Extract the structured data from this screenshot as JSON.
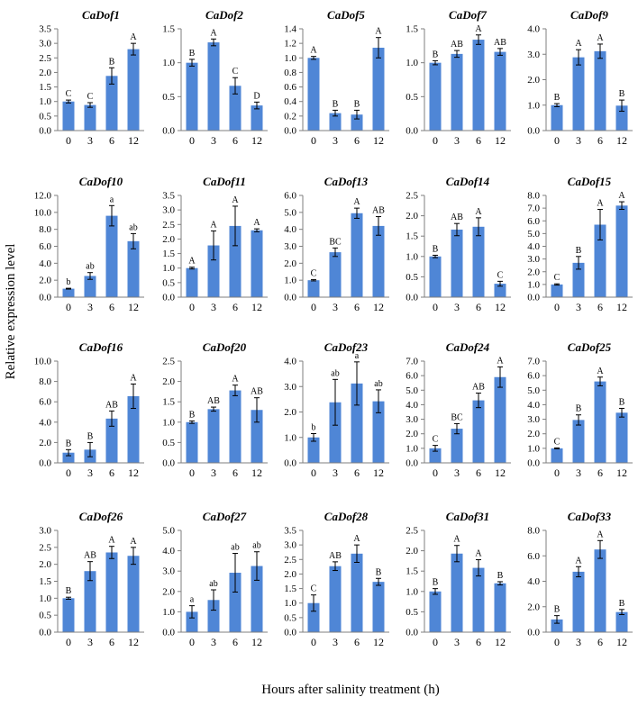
{
  "figure": {
    "ylabel": "Relative expression level",
    "xlabel": "Hours after salinity treatment (h)",
    "bar_color": "#4f86d6",
    "axis_color": "#7f7f7f"
  },
  "chart_data": [
    {
      "type": "bar",
      "title": "CaDof1",
      "categories": [
        "0",
        "3",
        "6",
        "12"
      ],
      "values": [
        1.0,
        0.88,
        1.88,
        2.8
      ],
      "errors": [
        0.05,
        0.08,
        0.28,
        0.2
      ],
      "letters": [
        "C",
        "C",
        "B",
        "A"
      ],
      "yticks": [
        "0.0",
        "0.5",
        "1.0",
        "1.5",
        "2.0",
        "2.5",
        "3.0",
        "3.5"
      ],
      "ylim": [
        0,
        3.5
      ]
    },
    {
      "type": "bar",
      "title": "CaDof2",
      "categories": [
        "0",
        "3",
        "6",
        "12"
      ],
      "values": [
        1.0,
        1.3,
        0.66,
        0.37
      ],
      "errors": [
        0.05,
        0.05,
        0.12,
        0.05
      ],
      "letters": [
        "B",
        "A",
        "C",
        "D"
      ],
      "yticks": [
        "0.0",
        "0.5",
        "1.0",
        "1.5"
      ],
      "ylim": [
        0,
        1.5
      ]
    },
    {
      "type": "bar",
      "title": "CaDof5",
      "categories": [
        "0",
        "3",
        "6",
        "12"
      ],
      "values": [
        1.0,
        0.24,
        0.22,
        1.14
      ],
      "errors": [
        0.02,
        0.04,
        0.06,
        0.14
      ],
      "letters": [
        "A",
        "B",
        "B",
        "A"
      ],
      "yticks": [
        "0.0",
        "0.2",
        "0.4",
        "0.6",
        "0.8",
        "1.0",
        "1.2",
        "1.4"
      ],
      "ylim": [
        0,
        1.4
      ]
    },
    {
      "type": "bar",
      "title": "CaDof7",
      "categories": [
        "0",
        "3",
        "6",
        "12"
      ],
      "values": [
        1.0,
        1.13,
        1.34,
        1.16
      ],
      "errors": [
        0.03,
        0.05,
        0.07,
        0.05
      ],
      "letters": [
        "B",
        "AB",
        "A",
        "AB"
      ],
      "yticks": [
        "0.0",
        "0.5",
        "1.0",
        "1.5"
      ],
      "ylim": [
        0,
        1.5
      ]
    },
    {
      "type": "bar",
      "title": "CaDof9",
      "categories": [
        "0",
        "3",
        "6",
        "12"
      ],
      "values": [
        1.0,
        2.88,
        3.12,
        0.98
      ],
      "errors": [
        0.06,
        0.3,
        0.28,
        0.22
      ],
      "letters": [
        "B",
        "A",
        "A",
        "B"
      ],
      "yticks": [
        "0.0",
        "1.0",
        "2.0",
        "3.0",
        "4.0"
      ],
      "ylim": [
        0,
        4
      ]
    },
    {
      "type": "bar",
      "title": "CaDof10",
      "categories": [
        "0",
        "3",
        "6",
        "12"
      ],
      "values": [
        1.0,
        2.5,
        9.6,
        6.6
      ],
      "errors": [
        0.05,
        0.4,
        1.2,
        0.9
      ],
      "letters": [
        "b",
        "ab",
        "a",
        "ab"
      ],
      "yticks": [
        "0.0",
        "2.0",
        "4.0",
        "6.0",
        "8.0",
        "10.0",
        "12.0"
      ],
      "ylim": [
        0,
        12
      ]
    },
    {
      "type": "bar",
      "title": "CaDof11",
      "categories": [
        "0",
        "3",
        "6",
        "12"
      ],
      "values": [
        1.0,
        1.78,
        2.45,
        2.3
      ],
      "errors": [
        0.03,
        0.5,
        0.68,
        0.05
      ],
      "letters": [
        "A",
        "A",
        "A",
        "A"
      ],
      "yticks": [
        "0.0",
        "0.5",
        "1.0",
        "1.5",
        "2.0",
        "2.5",
        "3.0",
        "3.5"
      ],
      "ylim": [
        0,
        3.5
      ]
    },
    {
      "type": "bar",
      "title": "CaDof13",
      "categories": [
        "0",
        "3",
        "6",
        "12"
      ],
      "values": [
        1.0,
        2.65,
        4.95,
        4.2
      ],
      "errors": [
        0.04,
        0.25,
        0.3,
        0.55
      ],
      "letters": [
        "C",
        "BC",
        "A",
        "AB"
      ],
      "yticks": [
        "0.0",
        "1.0",
        "2.0",
        "3.0",
        "4.0",
        "5.0",
        "6.0"
      ],
      "ylim": [
        0,
        6
      ]
    },
    {
      "type": "bar",
      "title": "CaDof14",
      "categories": [
        "0",
        "3",
        "6",
        "12"
      ],
      "values": [
        1.0,
        1.66,
        1.73,
        0.33
      ],
      "errors": [
        0.03,
        0.15,
        0.22,
        0.06
      ],
      "letters": [
        "B",
        "AB",
        "A",
        "C"
      ],
      "yticks": [
        "0.0",
        "0.5",
        "1.0",
        "1.5",
        "2.0",
        "2.5"
      ],
      "ylim": [
        0,
        2.5
      ]
    },
    {
      "type": "bar",
      "title": "CaDof15",
      "categories": [
        "0",
        "3",
        "6",
        "12"
      ],
      "values": [
        1.0,
        2.7,
        5.7,
        7.2
      ],
      "errors": [
        0.05,
        0.5,
        1.2,
        0.3
      ],
      "letters": [
        "C",
        "B",
        "A",
        "A"
      ],
      "yticks": [
        "0.0",
        "1.0",
        "2.0",
        "3.0",
        "4.0",
        "5.0",
        "6.0",
        "7.0",
        "8.0"
      ],
      "ylim": [
        0,
        8
      ]
    },
    {
      "type": "bar",
      "title": "CaDof16",
      "categories": [
        "0",
        "3",
        "6",
        "12"
      ],
      "values": [
        1.0,
        1.3,
        4.35,
        6.55
      ],
      "errors": [
        0.3,
        0.7,
        0.75,
        1.2
      ],
      "letters": [
        "B",
        "B",
        "AB",
        "A"
      ],
      "yticks": [
        "0.0",
        "2.0",
        "4.0",
        "6.0",
        "8.0",
        "10.0"
      ],
      "ylim": [
        0,
        10
      ]
    },
    {
      "type": "bar",
      "title": "CaDof20",
      "categories": [
        "0",
        "3",
        "6",
        "12"
      ],
      "values": [
        1.0,
        1.32,
        1.78,
        1.3
      ],
      "errors": [
        0.03,
        0.05,
        0.13,
        0.3
      ],
      "letters": [
        "B",
        "AB",
        "A",
        "AB"
      ],
      "yticks": [
        "0.0",
        "0.5",
        "1.0",
        "1.5",
        "2.0",
        "2.5"
      ],
      "ylim": [
        0,
        2.5
      ]
    },
    {
      "type": "bar",
      "title": "CaDof23",
      "categories": [
        "0",
        "3",
        "6",
        "12"
      ],
      "values": [
        1.0,
        2.38,
        3.12,
        2.42
      ],
      "errors": [
        0.15,
        0.9,
        0.85,
        0.45
      ],
      "letters": [
        "b",
        "ab",
        "a",
        "ab"
      ],
      "yticks": [
        "0.0",
        "1.0",
        "2.0",
        "3.0",
        "4.0"
      ],
      "ylim": [
        0,
        4
      ]
    },
    {
      "type": "bar",
      "title": "CaDof24",
      "categories": [
        "0",
        "3",
        "6",
        "12"
      ],
      "values": [
        1.0,
        2.35,
        4.3,
        5.9
      ],
      "errors": [
        0.2,
        0.35,
        0.5,
        0.7
      ],
      "letters": [
        "C",
        "BC",
        "AB",
        "A"
      ],
      "yticks": [
        "0.0",
        "1.0",
        "2.0",
        "3.0",
        "4.0",
        "5.0",
        "6.0",
        "7.0"
      ],
      "ylim": [
        0,
        7
      ]
    },
    {
      "type": "bar",
      "title": "CaDof25",
      "categories": [
        "0",
        "3",
        "6",
        "12"
      ],
      "values": [
        1.0,
        2.95,
        5.6,
        3.45
      ],
      "errors": [
        0.03,
        0.35,
        0.3,
        0.3
      ],
      "letters": [
        "C",
        "B",
        "A",
        "B"
      ],
      "yticks": [
        "0.0",
        "1.0",
        "2.0",
        "3.0",
        "4.0",
        "5.0",
        "6.0",
        "7.0"
      ],
      "ylim": [
        0,
        7
      ]
    },
    {
      "type": "bar",
      "title": "CaDof26",
      "categories": [
        "0",
        "3",
        "6",
        "12"
      ],
      "values": [
        1.0,
        1.8,
        2.35,
        2.25
      ],
      "errors": [
        0.03,
        0.28,
        0.18,
        0.25
      ],
      "letters": [
        "B",
        "AB",
        "A",
        "A"
      ],
      "yticks": [
        "0.0",
        "0.5",
        "1.0",
        "1.5",
        "2.0",
        "2.5",
        "3.0"
      ],
      "ylim": [
        0,
        3
      ]
    },
    {
      "type": "bar",
      "title": "CaDof27",
      "categories": [
        "0",
        "3",
        "6",
        "12"
      ],
      "values": [
        1.0,
        1.58,
        2.92,
        3.25
      ],
      "errors": [
        0.3,
        0.5,
        0.95,
        0.7
      ],
      "letters": [
        "a",
        "ab",
        "ab",
        "ab"
      ],
      "yticks": [
        "0.0",
        "1.0",
        "2.0",
        "3.0",
        "4.0",
        "5.0"
      ],
      "ylim": [
        0,
        5
      ]
    },
    {
      "type": "bar",
      "title": "CaDof28",
      "categories": [
        "0",
        "3",
        "6",
        "12"
      ],
      "values": [
        1.0,
        2.27,
        2.7,
        1.73
      ],
      "errors": [
        0.28,
        0.15,
        0.3,
        0.12
      ],
      "letters": [
        "C",
        "AB",
        "A",
        "B"
      ],
      "yticks": [
        "0.0",
        "0.5",
        "1.0",
        "1.5",
        "2.0",
        "2.5",
        "3.0",
        "3.5"
      ],
      "ylim": [
        0,
        3.5
      ]
    },
    {
      "type": "bar",
      "title": "CaDof31",
      "categories": [
        "0",
        "3",
        "6",
        "12"
      ],
      "values": [
        1.0,
        1.93,
        1.58,
        1.2
      ],
      "errors": [
        0.07,
        0.2,
        0.2,
        0.04
      ],
      "letters": [
        "B",
        "A",
        "A",
        "B"
      ],
      "yticks": [
        "0.0",
        "0.5",
        "1.0",
        "1.5",
        "2.0",
        "2.5"
      ],
      "ylim": [
        0,
        2.5
      ]
    },
    {
      "type": "bar",
      "title": "CaDof33",
      "categories": [
        "0",
        "3",
        "6",
        "12"
      ],
      "values": [
        1.0,
        4.75,
        6.5,
        1.58
      ],
      "errors": [
        0.3,
        0.4,
        0.7,
        0.2
      ],
      "letters": [
        "B",
        "A",
        "A",
        "B"
      ],
      "yticks": [
        "0.0",
        "2.0",
        "4.0",
        "6.0",
        "8.0"
      ],
      "ylim": [
        0,
        8
      ]
    }
  ]
}
